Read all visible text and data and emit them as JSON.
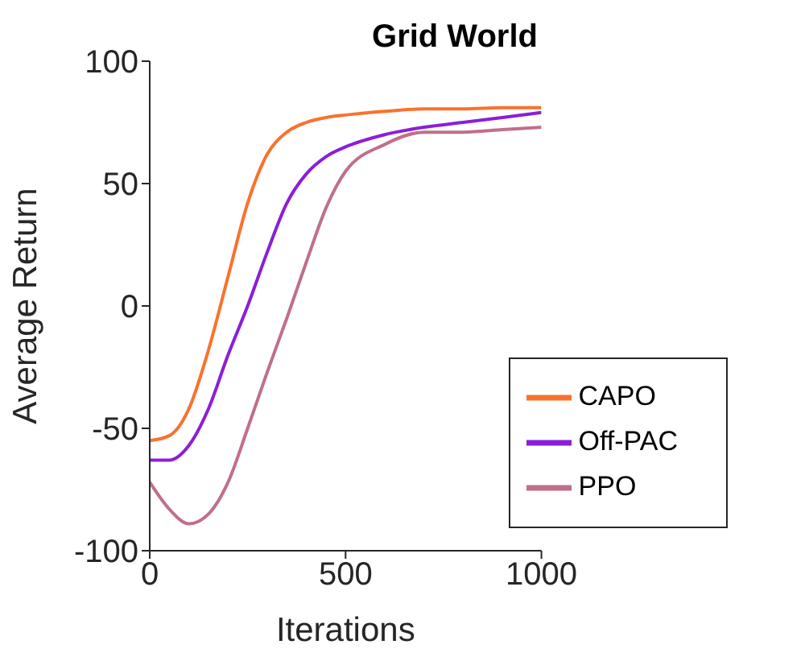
{
  "chart_data": {
    "type": "line",
    "title": "Grid World",
    "xlabel": "Iterations",
    "ylabel": "Average Return",
    "x": [
      0,
      50,
      100,
      150,
      200,
      250,
      300,
      350,
      400,
      450,
      500,
      600,
      700,
      800,
      900,
      1000
    ],
    "series": [
      {
        "name": "CAPO",
        "color": "#f8722e",
        "values": [
          -55,
          -53,
          -42,
          -18,
          12,
          42,
          62,
          71,
          75,
          77,
          78,
          79.5,
          80.5,
          80.5,
          81,
          81
        ]
      },
      {
        "name": "Off-PAC",
        "color": "#8b1fd8",
        "values": [
          -63,
          -63,
          -57,
          -42,
          -20,
          0,
          22,
          42,
          54,
          61,
          65,
          70,
          73,
          75,
          77,
          79
        ]
      },
      {
        "name": "PPO",
        "color": "#c06f8b",
        "values": [
          -72,
          -83,
          -89,
          -85,
          -72,
          -50,
          -27,
          -5,
          18,
          40,
          55,
          66,
          71,
          71,
          72,
          73
        ]
      }
    ],
    "xlim": [
      0,
      1000
    ],
    "xticks": [
      0,
      500,
      1000
    ],
    "ylim": [
      -100,
      100
    ],
    "yticks": [
      -100,
      -50,
      0,
      50,
      100
    ],
    "grid": false,
    "legend": "bottom right",
    "marker": "none",
    "line_style": "solid"
  }
}
